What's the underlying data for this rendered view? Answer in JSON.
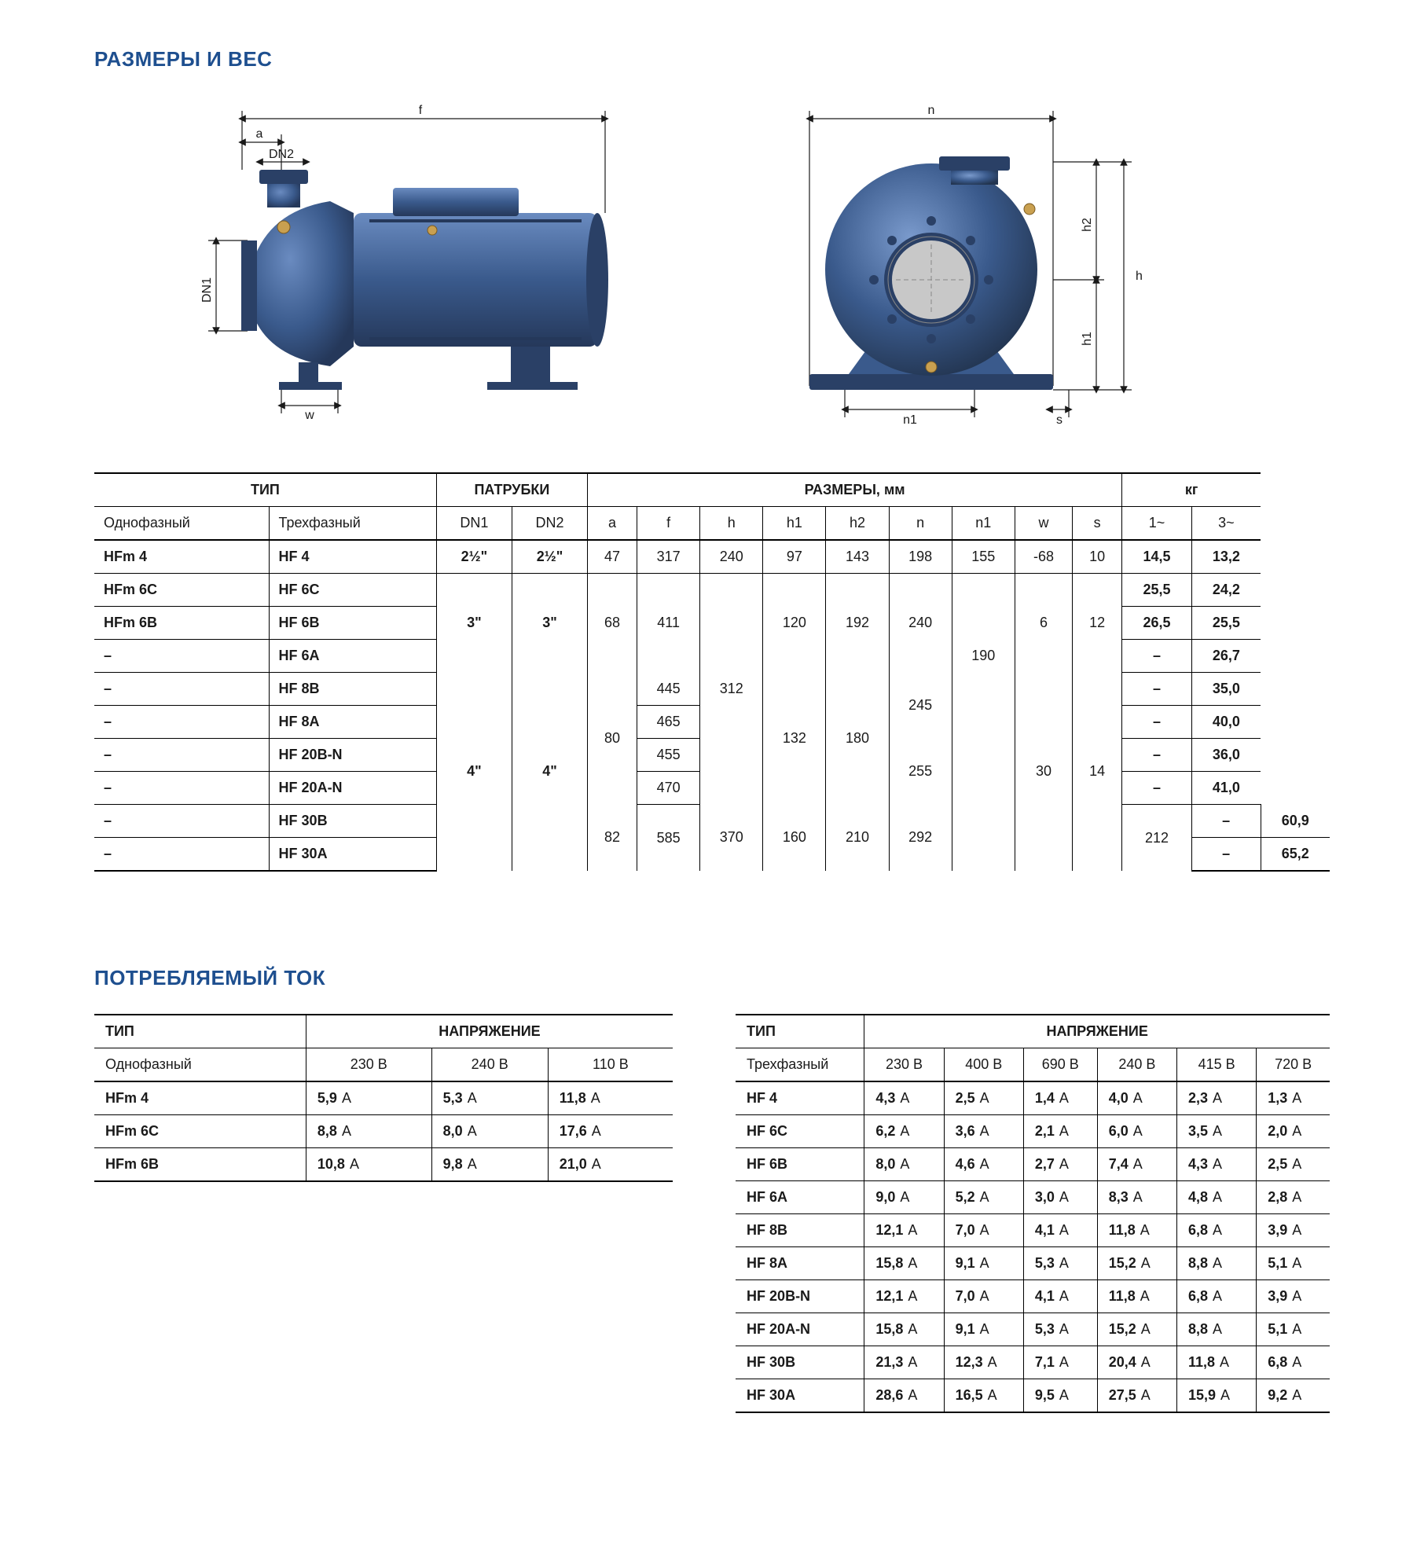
{
  "colors": {
    "heading": "#1e4f8f",
    "pump_body": "#3a5a8c",
    "pump_dark": "#2a4066",
    "pump_light": "#5a7bb0",
    "dim_line": "#1a1a1a",
    "brass": "#c9a050"
  },
  "headings": {
    "dimensions": "РАЗМЕРЫ И ВЕС",
    "current": "ПОТРЕБЛЯЕМЫЙ ТОК"
  },
  "dim_labels": {
    "f": "f",
    "a": "a",
    "DN2": "DN2",
    "DN1": "DN1",
    "w": "w",
    "n": "n",
    "n1": "n1",
    "s": "s",
    "h": "h",
    "h1": "h1",
    "h2": "h2"
  },
  "dim_table": {
    "group_headers": {
      "type": "ТИП",
      "ports": "ПАТРУБКИ",
      "dims": "РАЗМЕРЫ, мм",
      "kg": "кг"
    },
    "sub_headers": {
      "single": "Однофазный",
      "three": "Трехфазный",
      "dn1": "DN1",
      "dn2": "DN2",
      "a": "a",
      "f": "f",
      "h": "h",
      "h1": "h1",
      "h2": "h2",
      "n": "n",
      "n1": "n1",
      "w": "w",
      "s": "s",
      "k1": "1~",
      "k3": "3~"
    },
    "row1": {
      "m": "HFm 4",
      "t": "HF 4",
      "dn1": "2½\"",
      "dn2": "2½\"",
      "a": "47",
      "f": "317",
      "h": "240",
      "h1": "97",
      "h2": "143",
      "n": "198",
      "n1": "155",
      "w": "-68",
      "s": "10",
      "k1": "14,5",
      "k3": "13,2"
    },
    "row2": {
      "m": "HFm 6C",
      "t": "HF 6C",
      "k1": "25,5",
      "k3": "24,2"
    },
    "row3": {
      "m": "HFm 6B",
      "t": "HF 6B",
      "dn1": "3\"",
      "dn2": "3\"",
      "a": "68",
      "f": "411",
      "h1": "120",
      "h2": "192",
      "n": "240",
      "w": "6",
      "s": "12",
      "k1": "26,5",
      "k3": "25,5"
    },
    "row4": {
      "m": "–",
      "t": "HF 6A",
      "k1": "–",
      "k3": "26,7"
    },
    "row5": {
      "m": "–",
      "t": "HF 8B",
      "f": "445",
      "h": "312",
      "k1": "–",
      "k3": "35,0",
      "n1": "190"
    },
    "row6": {
      "m": "–",
      "t": "HF 8A",
      "a": "80",
      "f": "465",
      "n": "245",
      "k1": "–",
      "k3": "40,0"
    },
    "row7": {
      "m": "–",
      "t": "HF 20B-N",
      "dn1": "4\"",
      "dn2": "4\"",
      "f": "455",
      "h1": "132",
      "h2": "180",
      "w": "30",
      "s": "14",
      "k1": "–",
      "k3": "36,0"
    },
    "row8": {
      "m": "–",
      "t": "HF 20A-N",
      "f": "470",
      "n": "255",
      "k1": "–",
      "k3": "41,0"
    },
    "row9": {
      "m": "–",
      "t": "HF 30B",
      "a": "82",
      "f": "585",
      "h": "370",
      "h1": "160",
      "h2": "210",
      "n": "292",
      "n1": "212",
      "k1": "–",
      "k3": "60,9"
    },
    "row10": {
      "m": "–",
      "t": "HF 30A",
      "k1": "–",
      "k3": "65,2"
    }
  },
  "cur1": {
    "h_type": "ТИП",
    "h_volt": "НАПРЯЖЕНИЕ",
    "h_sub": "Однофазный",
    "v": [
      "230 В",
      "240 В",
      "110 В"
    ],
    "rows": [
      {
        "m": "HFm 4",
        "a": [
          "5,9",
          "5,3",
          "11,8"
        ]
      },
      {
        "m": "HFm 6C",
        "a": [
          "8,8",
          "8,0",
          "17,6"
        ]
      },
      {
        "m": "HFm 6B",
        "a": [
          "10,8",
          "9,8",
          "21,0"
        ]
      }
    ]
  },
  "cur2": {
    "h_type": "ТИП",
    "h_volt": "НАПРЯЖЕНИЕ",
    "h_sub": "Трехфазный",
    "v": [
      "230 В",
      "400 В",
      "690 В",
      "240 В",
      "415 В",
      "720 В"
    ],
    "rows": [
      {
        "m": "HF 4",
        "a": [
          "4,3",
          "2,5",
          "1,4",
          "4,0",
          "2,3",
          "1,3"
        ]
      },
      {
        "m": "HF 6C",
        "a": [
          "6,2",
          "3,6",
          "2,1",
          "6,0",
          "3,5",
          "2,0"
        ]
      },
      {
        "m": "HF 6B",
        "a": [
          "8,0",
          "4,6",
          "2,7",
          "7,4",
          "4,3",
          "2,5"
        ]
      },
      {
        "m": "HF 6A",
        "a": [
          "9,0",
          "5,2",
          "3,0",
          "8,3",
          "4,8",
          "2,8"
        ]
      },
      {
        "m": "HF 8B",
        "a": [
          "12,1",
          "7,0",
          "4,1",
          "11,8",
          "6,8",
          "3,9"
        ]
      },
      {
        "m": "HF 8A",
        "a": [
          "15,8",
          "9,1",
          "5,3",
          "15,2",
          "8,8",
          "5,1"
        ]
      },
      {
        "m": "HF 20B-N",
        "a": [
          "12,1",
          "7,0",
          "4,1",
          "11,8",
          "6,8",
          "3,9"
        ]
      },
      {
        "m": "HF 20A-N",
        "a": [
          "15,8",
          "9,1",
          "5,3",
          "15,2",
          "8,8",
          "5,1"
        ]
      },
      {
        "m": "HF 30B",
        "a": [
          "21,3",
          "12,3",
          "7,1",
          "20,4",
          "11,8",
          "6,8"
        ]
      },
      {
        "m": "HF 30A",
        "a": [
          "28,6",
          "16,5",
          "9,5",
          "27,5",
          "15,9",
          "9,2"
        ]
      }
    ]
  },
  "unit_A": "A"
}
